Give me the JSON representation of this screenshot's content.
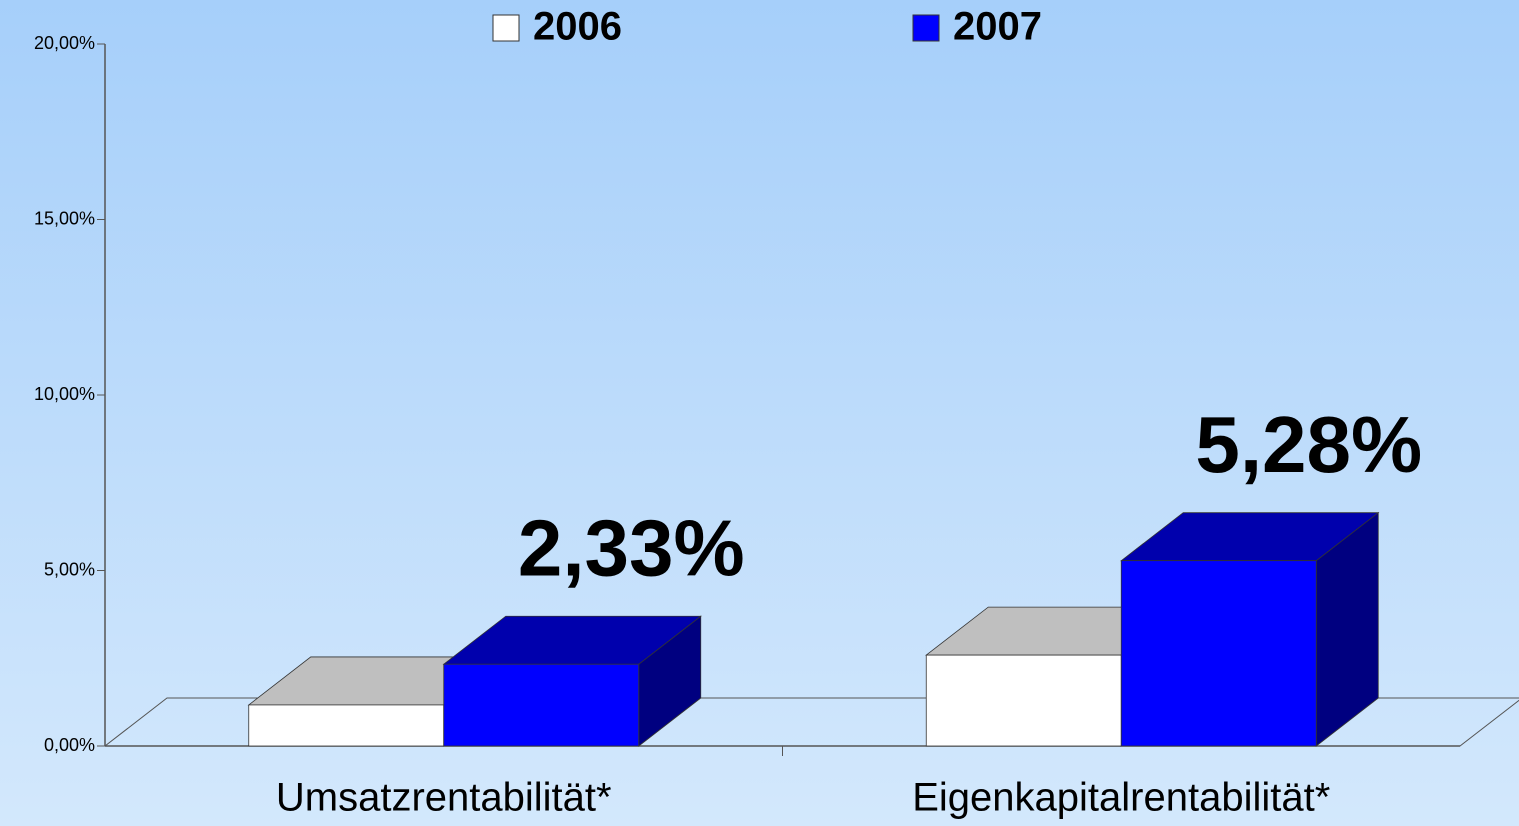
{
  "chart_data": {
    "type": "bar3d",
    "categories": [
      "Umsatzrentabilität*",
      "Eigenkapitalrentabilität*"
    ],
    "series": [
      {
        "name": "2006",
        "color": "#ffffff",
        "values": [
          1.17,
          2.59
        ]
      },
      {
        "name": "2007",
        "color": "#0000ff",
        "values": [
          2.33,
          5.28
        ],
        "value_labels": [
          "2,33%",
          "5,28%"
        ]
      }
    ],
    "ylim": [
      0,
      20
    ],
    "yticks": [
      {
        "value": 0,
        "label": "0,00%"
      },
      {
        "value": 5,
        "label": "5,00%"
      },
      {
        "value": 10,
        "label": "10,00%"
      },
      {
        "value": 15,
        "label": "15,00%"
      },
      {
        "value": 20,
        "label": "20,00%"
      }
    ],
    "grid": false,
    "legend": "top"
  }
}
